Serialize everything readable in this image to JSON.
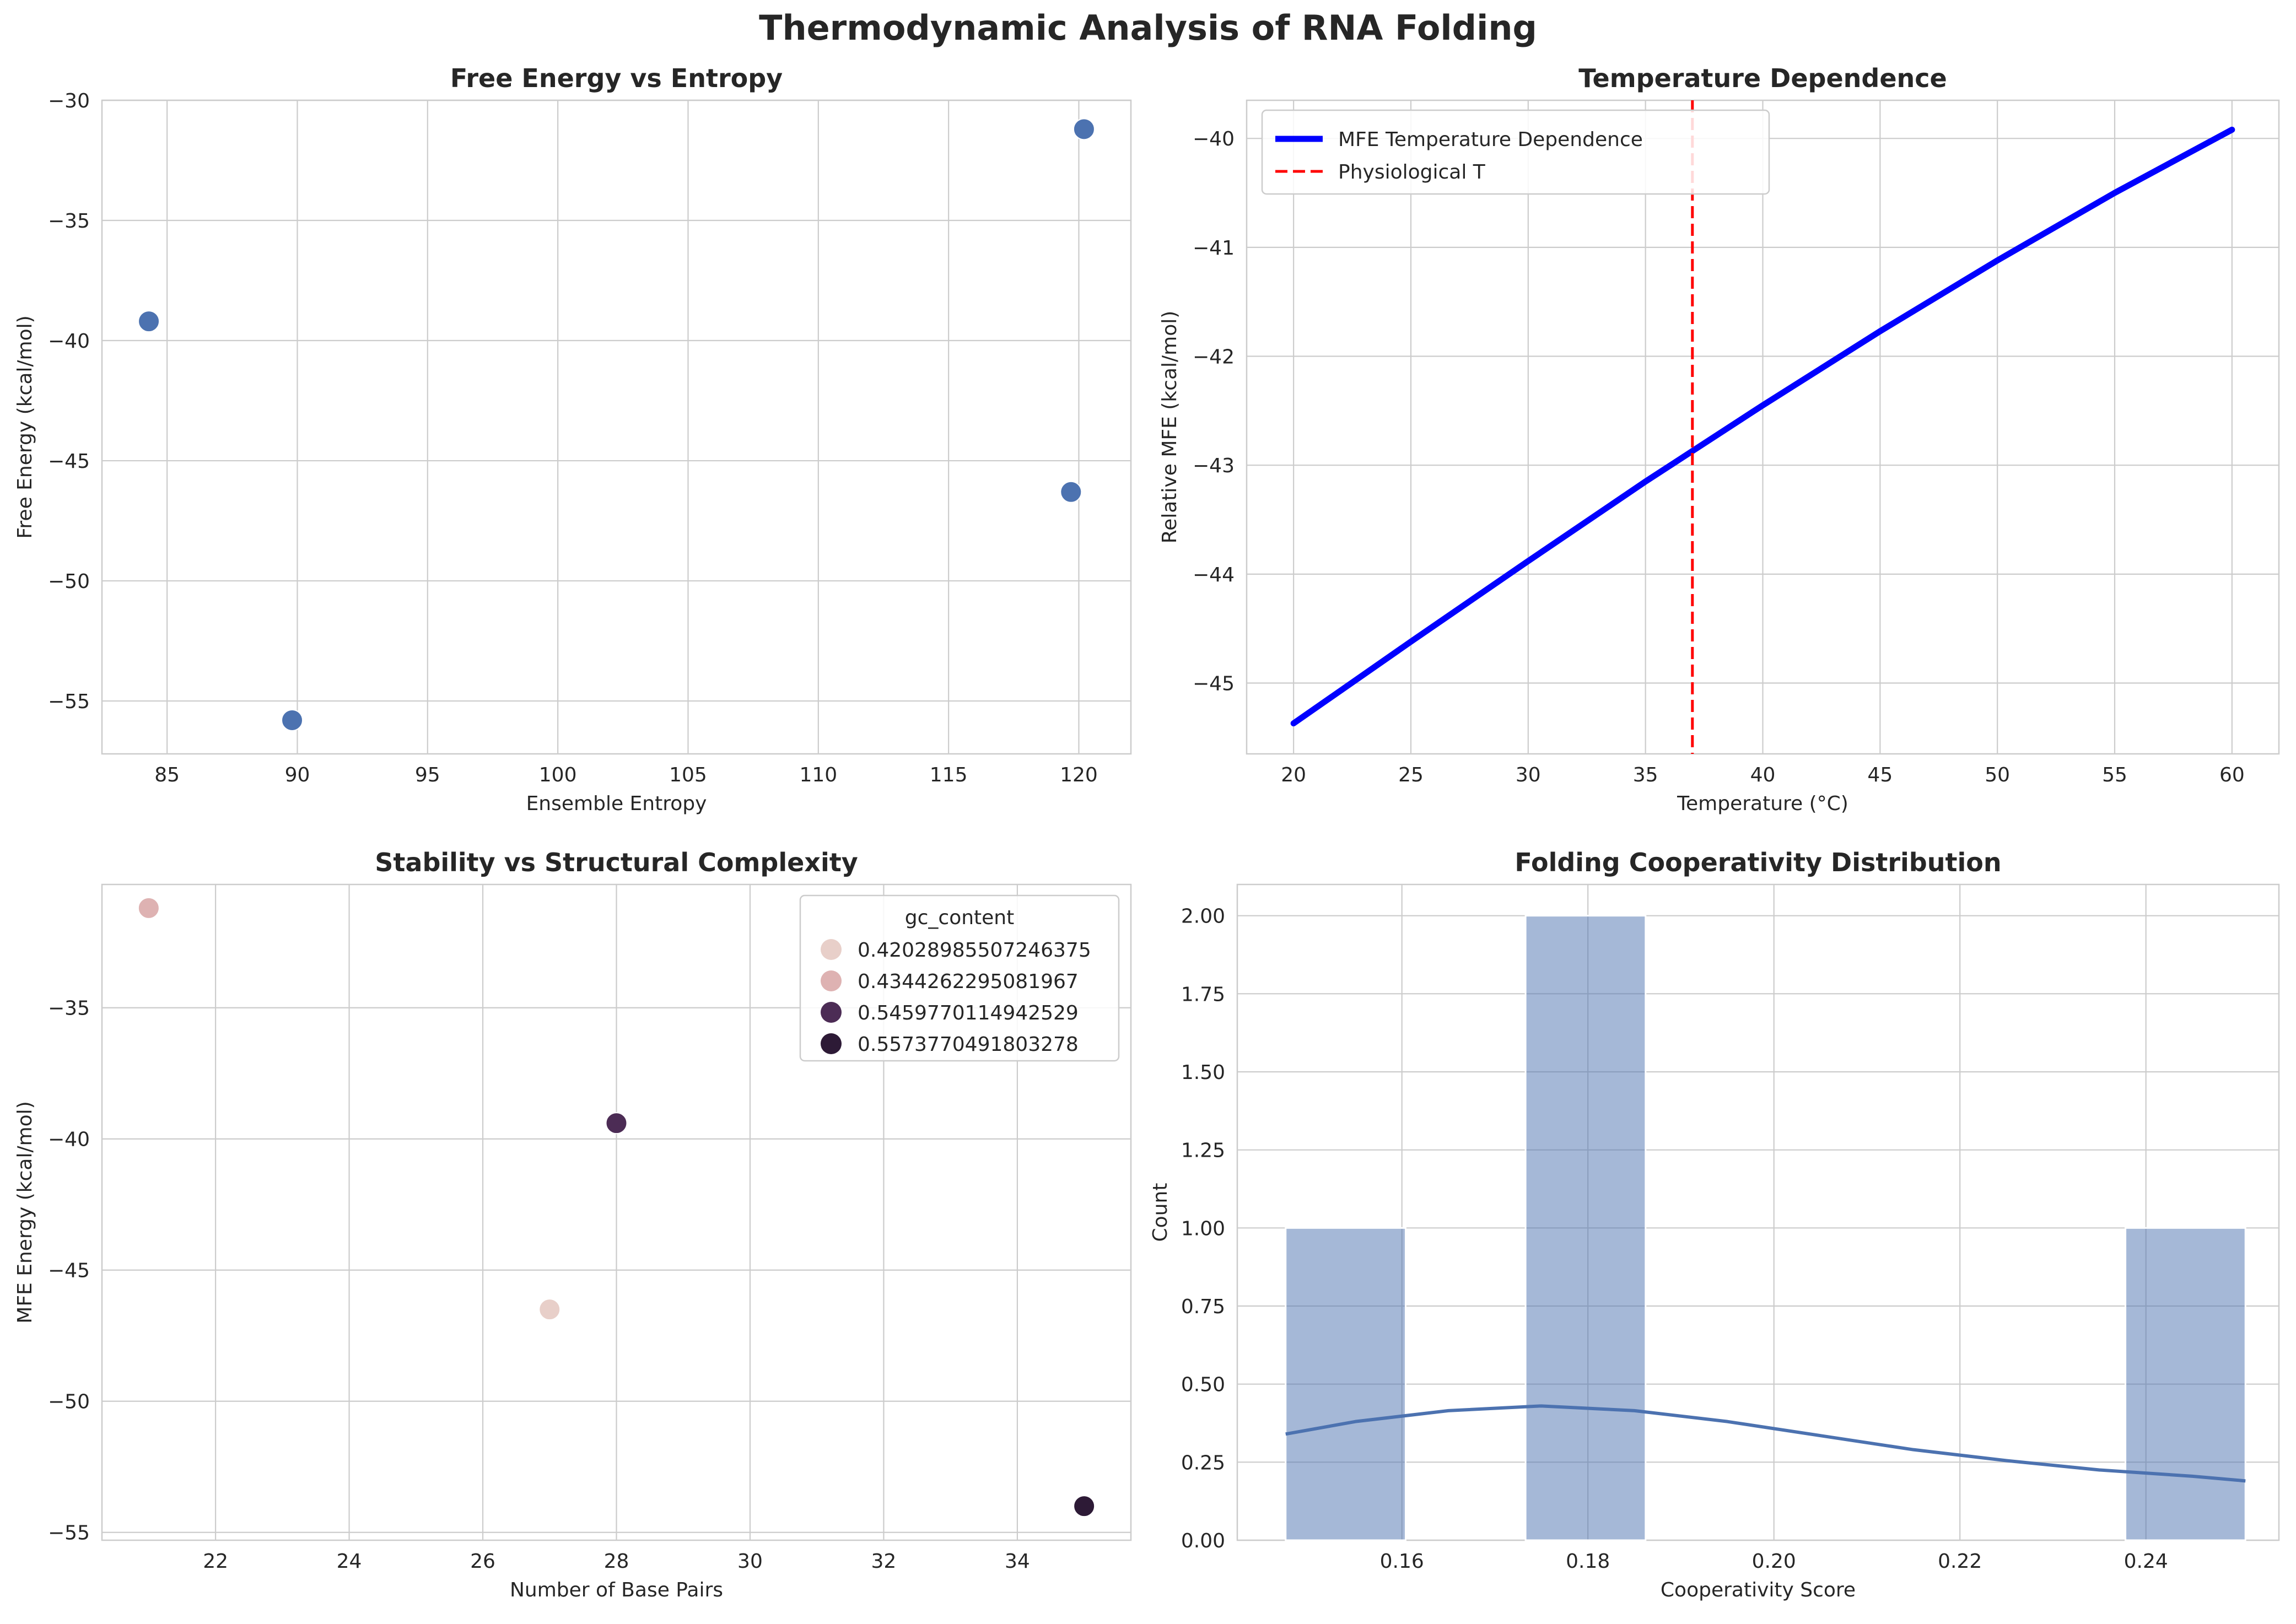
{
  "figure": {
    "suptitle": "Thermodynamic Analysis of RNA Folding"
  },
  "chart_data": [
    {
      "type": "scatter",
      "title": "Free Energy vs Entropy",
      "xlabel": "Ensemble Entropy",
      "ylabel": "Free Energy (kcal/mol)",
      "xlim": [
        82.5,
        122.0
      ],
      "ylim": [
        -57.2,
        -30.0
      ],
      "xticks": [
        85,
        90,
        95,
        100,
        105,
        110,
        115,
        120
      ],
      "yticks": [
        -55,
        -50,
        -45,
        -40,
        -35,
        -30
      ],
      "grid": true,
      "color": "#4c72b0",
      "points": [
        {
          "x": 84.3,
          "y": -39.2
        },
        {
          "x": 89.8,
          "y": -55.8
        },
        {
          "x": 119.7,
          "y": -46.3
        },
        {
          "x": 120.2,
          "y": -31.2
        }
      ]
    },
    {
      "type": "line",
      "title": "Temperature Dependence",
      "xlabel": "Temperature (°C)",
      "ylabel": "Relative MFE (kcal/mol)",
      "xlim": [
        18.0,
        62.0
      ],
      "ylim": [
        -45.65,
        -39.65
      ],
      "xticks": [
        20,
        25,
        30,
        35,
        40,
        45,
        50,
        55,
        60
      ],
      "yticks": [
        -45,
        -44,
        -43,
        -42,
        -41,
        -40
      ],
      "grid": true,
      "legend_position": "top-left",
      "series": [
        {
          "name": "MFE Temperature Dependence",
          "color": "#0000ff",
          "x": [
            20,
            25,
            30,
            35,
            40,
            45,
            50,
            55,
            60
          ],
          "y": [
            -45.37,
            -44.62,
            -43.88,
            -43.15,
            -42.45,
            -41.77,
            -41.12,
            -40.5,
            -39.92
          ]
        }
      ],
      "vline": {
        "name": "Physiological T",
        "x": 37,
        "color": "#ff0000"
      }
    },
    {
      "type": "scatter",
      "title": "Stability vs Structural Complexity",
      "xlabel": "Number of Base Pairs",
      "ylabel": "MFE Energy (kcal/mol)",
      "xlim": [
        20.3,
        35.7
      ],
      "ylim": [
        -55.3,
        -30.3
      ],
      "xticks": [
        22,
        24,
        26,
        28,
        30,
        32,
        34
      ],
      "yticks": [
        -55,
        -50,
        -45,
        -40,
        -35
      ],
      "grid": true,
      "legend_title": "gc_content",
      "legend_position": "top-right",
      "hue_levels": [
        {
          "label": "0.42028985507246375",
          "color": "#e8cfc9"
        },
        {
          "label": "0.4344262295081967",
          "color": "#deb2b2"
        },
        {
          "label": "0.5459770114942529",
          "color": "#4c2c55"
        },
        {
          "label": "0.5573770491803278",
          "color": "#2d1a36"
        }
      ],
      "points": [
        {
          "x": 21,
          "y": -31.2,
          "hue": 1
        },
        {
          "x": 27,
          "y": -46.5,
          "hue": 0
        },
        {
          "x": 28,
          "y": -39.4,
          "hue": 2
        },
        {
          "x": 35,
          "y": -54.0,
          "hue": 3
        }
      ]
    },
    {
      "type": "bar",
      "title": "Folding Cooperativity Distribution",
      "xlabel": "Cooperativity Score",
      "ylabel": "Count",
      "xlim": [
        0.1423,
        0.2543
      ],
      "ylim": [
        0,
        2.1
      ],
      "xticks": [
        0.16,
        0.18,
        0.2,
        0.22,
        0.24
      ],
      "yticks": [
        "0.00",
        "0.25",
        "0.50",
        "0.75",
        "1.00",
        "1.25",
        "1.50",
        "1.75",
        "2.00"
      ],
      "grid": true,
      "color": "#4c72b0",
      "bins": [
        {
          "x0": 0.1475,
          "x1": 0.1604,
          "count": 1
        },
        {
          "x0": 0.1604,
          "x1": 0.1733,
          "count": 0
        },
        {
          "x0": 0.1733,
          "x1": 0.1862,
          "count": 2
        },
        {
          "x0": 0.1862,
          "x1": 0.1991,
          "count": 0
        },
        {
          "x0": 0.1991,
          "x1": 0.212,
          "count": 0
        },
        {
          "x0": 0.212,
          "x1": 0.2249,
          "count": 0
        },
        {
          "x0": 0.2249,
          "x1": 0.2378,
          "count": 0
        },
        {
          "x0": 0.2378,
          "x1": 0.2507,
          "count": 1
        }
      ],
      "kde": {
        "x": [
          0.1475,
          0.155,
          0.165,
          0.175,
          0.185,
          0.195,
          0.205,
          0.215,
          0.225,
          0.235,
          0.245,
          0.2507
        ],
        "y": [
          0.34,
          0.38,
          0.415,
          0.43,
          0.415,
          0.38,
          0.335,
          0.29,
          0.255,
          0.225,
          0.205,
          0.19
        ]
      }
    }
  ]
}
